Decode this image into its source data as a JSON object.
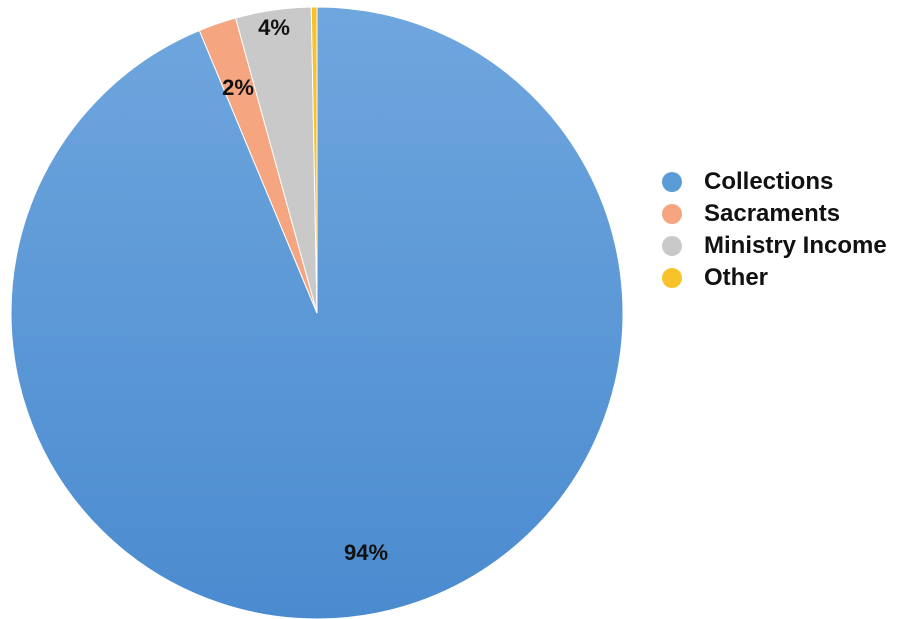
{
  "chart_data": {
    "type": "pie",
    "title": "",
    "legend_position": "right",
    "slices": [
      {
        "name": "Collections",
        "value": 94,
        "label": "94%",
        "color": "#5A9BD8"
      },
      {
        "name": "Sacraments",
        "value": 2,
        "label": "2%",
        "color": "#F5A57F"
      },
      {
        "name": "Ministry Income",
        "value": 4,
        "label": "4%",
        "color": "#C9C9C9"
      },
      {
        "name": "Other",
        "value": 0.3,
        "label": "",
        "color": "#F7C22A"
      }
    ]
  }
}
